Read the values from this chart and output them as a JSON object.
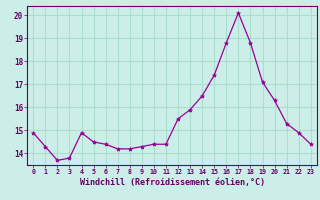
{
  "x": [
    0,
    1,
    2,
    3,
    4,
    5,
    6,
    7,
    8,
    9,
    10,
    11,
    12,
    13,
    14,
    15,
    16,
    17,
    18,
    19,
    20,
    21,
    22,
    23
  ],
  "y": [
    14.9,
    14.3,
    13.7,
    13.8,
    14.9,
    14.5,
    14.4,
    14.2,
    14.2,
    14.3,
    14.4,
    14.4,
    15.5,
    15.9,
    16.5,
    17.4,
    18.8,
    20.1,
    18.8,
    17.1,
    16.3,
    15.3,
    14.9,
    14.4
  ],
  "line_color": "#990099",
  "marker": "*",
  "bg_color": "#cceee8",
  "grid_color": "#aaddcc",
  "xlabel": "Windchill (Refroidissement éolien,°C)",
  "xlabel_color": "#660066",
  "tick_color": "#660066",
  "ylim": [
    13.5,
    20.4
  ],
  "yticks": [
    14,
    15,
    16,
    17,
    18,
    19,
    20
  ],
  "xticks": [
    0,
    1,
    2,
    3,
    4,
    5,
    6,
    7,
    8,
    9,
    10,
    11,
    12,
    13,
    14,
    15,
    16,
    17,
    18,
    19,
    20,
    21,
    22,
    23
  ]
}
